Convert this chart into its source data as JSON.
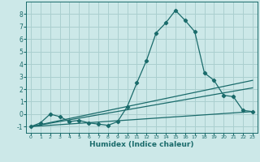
{
  "xlabel": "Humidex (Indice chaleur)",
  "ylabel": "",
  "bg_color": "#cce8e8",
  "grid_color": "#aacfcf",
  "line_color": "#1a6b6b",
  "xlim": [
    -0.5,
    23.5
  ],
  "ylim": [
    -1.5,
    9.0
  ],
  "yticks": [
    -1,
    0,
    1,
    2,
    3,
    4,
    5,
    6,
    7,
    8
  ],
  "xticks": [
    0,
    1,
    2,
    3,
    4,
    5,
    6,
    7,
    8,
    9,
    10,
    11,
    12,
    13,
    14,
    15,
    16,
    17,
    18,
    19,
    20,
    21,
    22,
    23
  ],
  "curve1_x": [
    0,
    1,
    2,
    3,
    4,
    5,
    6,
    7,
    8,
    9,
    10,
    11,
    12,
    13,
    14,
    15,
    16,
    17,
    18,
    19,
    20,
    21,
    22,
    23
  ],
  "curve1_y": [
    -1,
    -0.7,
    0.0,
    -0.2,
    -0.6,
    -0.5,
    -0.7,
    -0.8,
    -0.9,
    -0.6,
    0.6,
    2.5,
    4.3,
    6.5,
    7.3,
    8.3,
    7.5,
    6.6,
    3.3,
    2.7,
    1.5,
    1.4,
    0.3,
    0.2
  ],
  "curve2_x": [
    0,
    23
  ],
  "curve2_y": [
    -1,
    2.7
  ],
  "curve3_x": [
    0,
    23
  ],
  "curve3_y": [
    -1,
    2.1
  ],
  "curve4_x": [
    0,
    23
  ],
  "curve4_y": [
    -1,
    0.2
  ]
}
